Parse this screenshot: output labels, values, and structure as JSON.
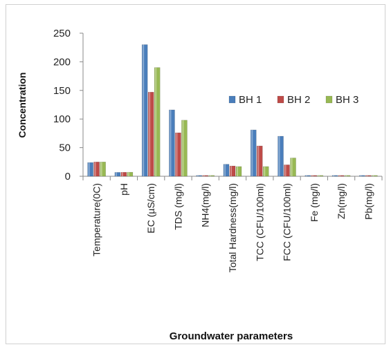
{
  "chart_data": {
    "type": "bar",
    "title": "",
    "xlabel": "Groundwater parameters",
    "ylabel": "Concentration",
    "ylim": [
      0,
      250
    ],
    "yticks": [
      0,
      50,
      100,
      150,
      200,
      250
    ],
    "grid": false,
    "legend_position": "right",
    "categories": [
      "Temperature(0C)",
      "pH",
      "EC (µS/cm)",
      "TDS (mg/l)",
      "NH4(mg/l)",
      "Total Hardness(mg/l)",
      "TCC (CFU/100ml)",
      "FCC (CFU/100ml)",
      "Fe (mg/l)",
      "Zn(mg/l)",
      "Pb(mg/l)"
    ],
    "series": [
      {
        "name": "BH 1",
        "color": "#4a7ebb",
        "values": [
          24,
          6.8,
          230,
          116,
          0.5,
          21,
          81,
          70,
          0.3,
          0.1,
          0.02
        ]
      },
      {
        "name": "BH 2",
        "color": "#be4b48",
        "values": [
          25,
          7.0,
          147,
          76,
          0.4,
          18,
          53,
          20,
          0.2,
          0.1,
          0.02
        ]
      },
      {
        "name": "BH 3",
        "color": "#98b954",
        "values": [
          25,
          7.1,
          190,
          98,
          0.4,
          17,
          17,
          32,
          0.2,
          0.1,
          0.02
        ]
      }
    ]
  }
}
